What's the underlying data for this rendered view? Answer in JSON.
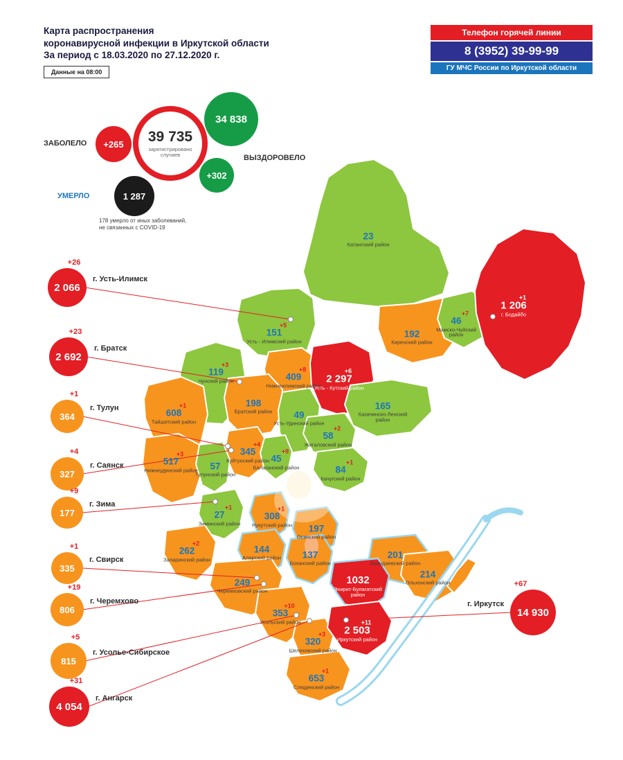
{
  "palette": {
    "red": "#e31e24",
    "orange": "#f7941e",
    "green": "#8dc63f",
    "green_dark": "#169c46",
    "blue_text": "#1b75bc",
    "dark_blue": "#2e3192",
    "light_blue": "#9bd7ef",
    "black": "#1b1b1b"
  },
  "header": {
    "title_line1": "Карта распространения",
    "title_line2": "коронавирусной инфекции в Иркутской области",
    "title_line3": "За период с 18.03.2020 по 27.12.2020 г.",
    "data_time": "Данные на 08:00",
    "hotline": {
      "label": "Телефон горячей линии",
      "phone": "8 (3952) 39-99-99",
      "org": "ГУ МЧС России по Иркутской области"
    }
  },
  "stats": {
    "infected_label": "ЗАБОЛЕЛО",
    "infected_delta": "+265",
    "total_value": "39 735",
    "total_caption": "зарегистрировано случаев",
    "recovered_value": "34 838",
    "recovered_label": "ВЫЗДОРОВЕЛО",
    "recovered_delta": "+302",
    "died_label": "УМЕРЛО",
    "died_value": "1 287",
    "died_note": "178 умерло от иных заболеваний, не связанных с COVID-19"
  },
  "cities": [
    {
      "key": "ust-ilimsk",
      "label": "г. Усть-Илимск",
      "value": "2 066",
      "delta": "+26",
      "level": "red"
    },
    {
      "key": "bratsk",
      "label": "г. Братск",
      "value": "2 692",
      "delta": "+23",
      "level": "red"
    },
    {
      "key": "tulun",
      "label": "г. Тулун",
      "value": "364",
      "delta": "+1",
      "level": "orange"
    },
    {
      "key": "sayansk",
      "label": "г. Саянск",
      "value": "327",
      "delta": "+4",
      "level": "orange"
    },
    {
      "key": "zima",
      "label": "г. Зима",
      "value": "177",
      "delta": "+9",
      "level": "orange"
    },
    {
      "key": "svirsk",
      "label": "г. Свирск",
      "value": "335",
      "delta": "+1",
      "level": "orange"
    },
    {
      "key": "cheremkhovo",
      "label": "г. Черемхово",
      "value": "806",
      "delta": "+19",
      "level": "orange"
    },
    {
      "key": "usolye",
      "label": "г. Усолье-Сибирское",
      "value": "815",
      "delta": "+5",
      "level": "orange"
    },
    {
      "key": "angarsk",
      "label": "г. Ангарск",
      "value": "4 054",
      "delta": "+31",
      "level": "red"
    },
    {
      "key": "irkutsk",
      "label": "г. Иркутск",
      "value": "14 930",
      "delta": "+67",
      "level": "red",
      "side": "right"
    }
  ],
  "districts": [
    {
      "key": "katangsky",
      "name": "Катангский район",
      "value": "23",
      "delta": "",
      "level": "green"
    },
    {
      "key": "ust-ilimsky",
      "name": "Усть - Илимский район",
      "value": "151",
      "delta": "+5",
      "level": "green"
    },
    {
      "key": "kirensky",
      "name": "Киренский район",
      "value": "192",
      "delta": "",
      "level": "orange"
    },
    {
      "key": "mamsko-chuysky",
      "name": "Мамско-Чуйский район",
      "value": "46",
      "delta": "+7",
      "level": "green"
    },
    {
      "key": "bodaibo",
      "name": "г. Бодайбо",
      "value": "1 206",
      "delta": "+1",
      "level": "red"
    },
    {
      "key": "chunsky",
      "name": "Чунский район",
      "value": "119",
      "delta": "+3",
      "level": "green"
    },
    {
      "key": "nizhneilimsky",
      "name": "Нижнеилимский район",
      "value": "409",
      "delta": "+8",
      "level": "orange"
    },
    {
      "key": "ust-kutsky",
      "name": "Усть - Кутский район",
      "value": "2 297",
      "delta": "+6",
      "level": "red"
    },
    {
      "key": "taishetsky",
      "name": "Тайшетский район",
      "value": "608",
      "delta": "+1",
      "level": "orange"
    },
    {
      "key": "bratsky",
      "name": "Братский район",
      "value": "198",
      "delta": "",
      "level": "orange"
    },
    {
      "key": "ust-udinsky",
      "name": "Усть-Удинский район",
      "value": "49",
      "delta": "",
      "level": "green"
    },
    {
      "key": "kazachinsko-lensky",
      "name": "Казачинско-Ленский район",
      "value": "165",
      "delta": "",
      "level": "green"
    },
    {
      "key": "zhigalovsky",
      "name": "Жигаловский район",
      "value": "58",
      "delta": "+2",
      "level": "green"
    },
    {
      "key": "nizhneudinsky",
      "name": "Нижнеудинский район",
      "value": "517",
      "delta": "+3",
      "level": "orange"
    },
    {
      "key": "kuitunsky",
      "name": "Куйтунский район",
      "value": "345",
      "delta": "+4",
      "level": "orange"
    },
    {
      "key": "balagansky",
      "name": "Балаганский район",
      "value": "45",
      "delta": "+9",
      "level": "green"
    },
    {
      "key": "tulunsky",
      "name": "Тулунский район",
      "value": "57",
      "delta": "",
      "level": "green"
    },
    {
      "key": "kachugsky",
      "name": "Качугский район",
      "value": "84",
      "delta": "+1",
      "level": "green"
    },
    {
      "key": "ziminsky",
      "name": "Зиминский район",
      "value": "27",
      "delta": "+1",
      "level": "green"
    },
    {
      "key": "nukutsky",
      "name": "Нукутский район",
      "value": "308",
      "delta": "+1",
      "level": "orange"
    },
    {
      "key": "osinsky",
      "name": "Осинский район",
      "value": "197",
      "delta": "",
      "level": "orange"
    },
    {
      "key": "zalarinsky",
      "name": "Заларинский район",
      "value": "262",
      "delta": "+2",
      "level": "orange"
    },
    {
      "key": "alarsky",
      "name": "Аларский район",
      "value": "144",
      "delta": "",
      "level": "orange"
    },
    {
      "key": "bokhansky",
      "name": "Боханский район",
      "value": "137",
      "delta": "",
      "level": "orange"
    },
    {
      "key": "bayandaevsky",
      "name": "Баяндаевский район",
      "value": "201",
      "delta": "",
      "level": "orange"
    },
    {
      "key": "ekhirit-bulagatsky",
      "name": "Эхирит-Булагатский район",
      "value": "1032",
      "delta": "",
      "level": "red"
    },
    {
      "key": "olkhonsky",
      "name": "Ольхонский район",
      "value": "214",
      "delta": "",
      "level": "orange"
    },
    {
      "key": "cheremkhovsky",
      "name": "Черемховский район",
      "value": "249",
      "delta": "",
      "level": "orange"
    },
    {
      "key": "usolsky",
      "name": "Усольский район",
      "value": "353",
      "delta": "+10",
      "level": "orange"
    },
    {
      "key": "shelekhovsky",
      "name": "Шелеховский район",
      "value": "320",
      "delta": "+3",
      "level": "orange"
    },
    {
      "key": "irkutsky",
      "name": "Иркутский район",
      "value": "2 503",
      "delta": "+11",
      "level": "red"
    },
    {
      "key": "slyudyansky",
      "name": "Слюдянский район",
      "value": "653",
      "delta": "+1",
      "level": "orange"
    }
  ]
}
